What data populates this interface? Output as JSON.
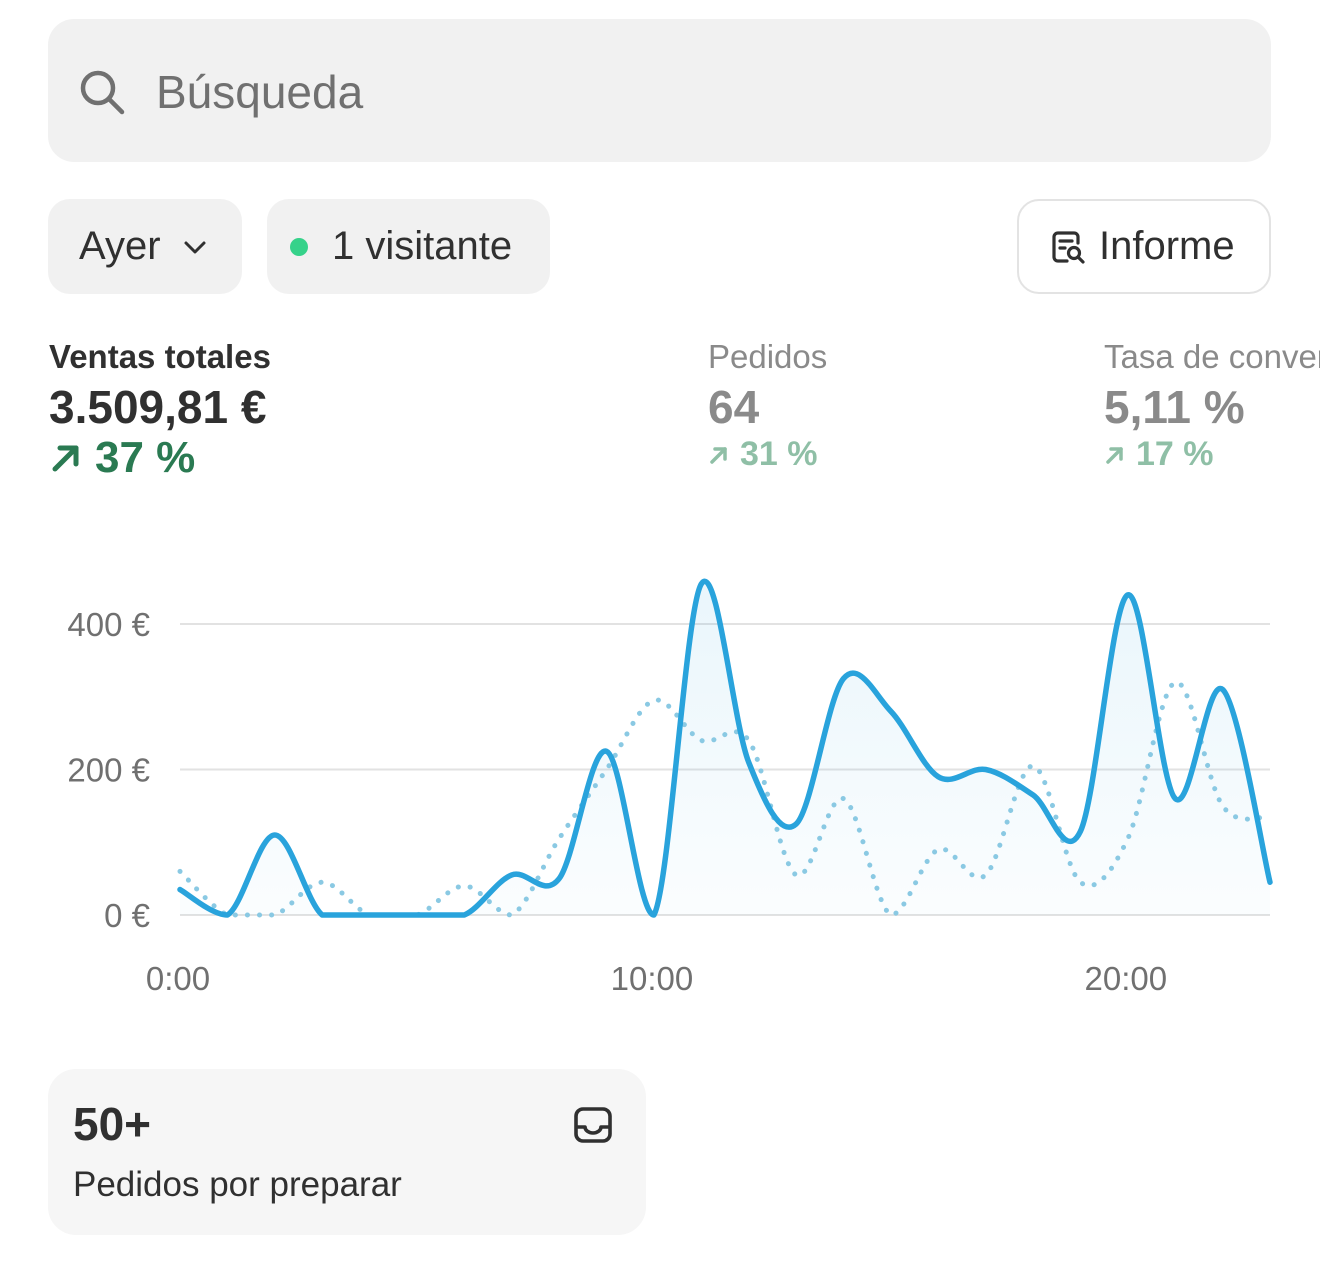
{
  "search": {
    "placeholder": "Búsqueda",
    "icon": "search-icon"
  },
  "filters": {
    "date_label": "Ayer",
    "visitors_label": "1 visitante",
    "report_label": "Informe"
  },
  "metrics": [
    {
      "label": "Ventas totales",
      "value": "3.509,81 €",
      "delta": "37 %"
    },
    {
      "label": "Pedidos",
      "value": "64",
      "delta": "31 %"
    },
    {
      "label": "Tasa de conversión",
      "value": "5,11 %",
      "delta": "17 %"
    }
  ],
  "colors": {
    "accent": "#29a3dc",
    "positive": "#2a7a52",
    "live_dot": "#36d28a"
  },
  "chart_data": {
    "type": "line",
    "y_ticks": [
      "0 €",
      "200 €",
      "400 €"
    ],
    "x_ticks": [
      "0:00",
      "10:00",
      "20:00"
    ],
    "ylim": [
      0,
      460
    ],
    "xlim": [
      0,
      23
    ],
    "grid": true,
    "series": [
      {
        "style": "solid",
        "x": [
          0,
          1,
          2,
          3,
          4,
          5,
          6,
          7,
          8,
          9,
          10,
          11,
          12,
          13,
          14,
          15,
          16,
          17,
          18,
          19,
          20,
          21,
          22,
          23
        ],
        "values": [
          35,
          0,
          110,
          0,
          0,
          0,
          0,
          55,
          50,
          225,
          0,
          455,
          210,
          125,
          325,
          280,
          190,
          200,
          165,
          115,
          440,
          160,
          310,
          45
        ]
      },
      {
        "style": "dotted",
        "x": [
          0,
          1,
          2,
          3,
          4,
          5,
          6,
          7,
          8,
          9,
          10,
          11,
          12,
          13,
          14,
          15,
          16,
          17,
          18,
          19,
          20,
          21,
          22,
          23
        ],
        "values": [
          60,
          0,
          0,
          45,
          0,
          0,
          40,
          0,
          105,
          200,
          295,
          240,
          240,
          55,
          160,
          0,
          90,
          55,
          205,
          45,
          105,
          320,
          150,
          135
        ]
      }
    ]
  },
  "card": {
    "value": "50+",
    "label": "Pedidos por preparar"
  }
}
